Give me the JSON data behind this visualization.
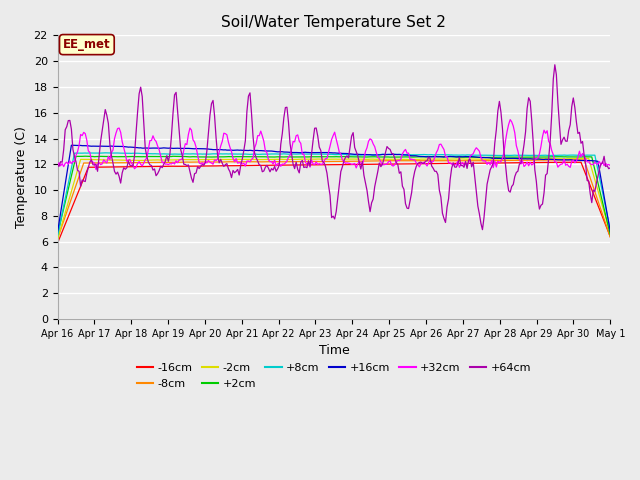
{
  "title": "Soil/Water Temperature Set 2",
  "xlabel": "Time",
  "ylabel": "Temperature (C)",
  "ylim": [
    0,
    22
  ],
  "yticks": [
    0,
    2,
    4,
    6,
    8,
    10,
    12,
    14,
    16,
    18,
    20,
    22
  ],
  "plot_bg_color": "#ebebeb",
  "grid_color": "#ffffff",
  "annotation_text": "EE_met",
  "annotation_bg": "#ffffcc",
  "annotation_border": "#8b0000",
  "series": [
    {
      "label": "-16cm",
      "color": "#ff0000"
    },
    {
      "label": "-8cm",
      "color": "#ff8800"
    },
    {
      "label": "-2cm",
      "color": "#dddd00"
    },
    {
      "label": "+2cm",
      "color": "#00cc00"
    },
    {
      "label": "+8cm",
      "color": "#00cccc"
    },
    {
      "label": "+16cm",
      "color": "#0000cc"
    },
    {
      "label": "+32cm",
      "color": "#ff00ff"
    },
    {
      "label": "+64cm",
      "color": "#aa00aa"
    }
  ],
  "xtick_labels": [
    "Apr 16",
    "Apr 17",
    "Apr 18",
    "Apr 19",
    "Apr 20",
    "Apr 21",
    "Apr 22",
    "Apr 23",
    "Apr 24",
    "Apr 25",
    "Apr 26",
    "Apr 27",
    "Apr 28",
    "Apr 29",
    "Apr 30",
    "May 1"
  ]
}
